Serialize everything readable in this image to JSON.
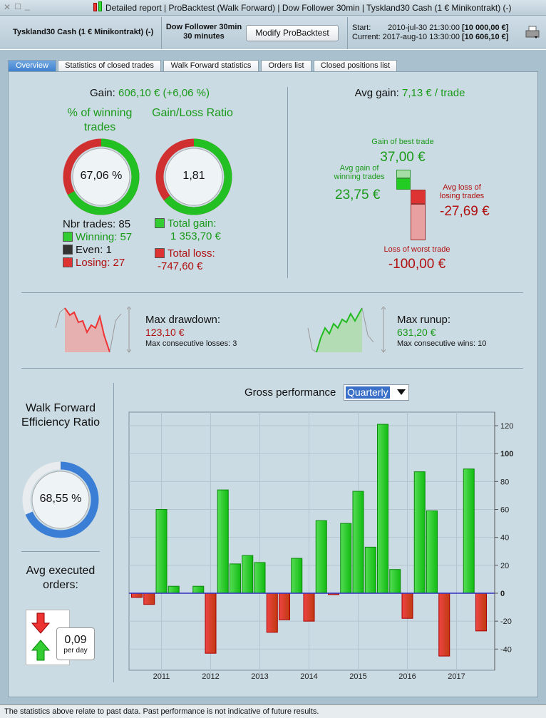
{
  "window": {
    "title": "Detailed report | ProBacktest (Walk Forward) | Dow Follower 30min | Tyskland30 Cash (1 € Minikontrakt) (-)"
  },
  "header": {
    "instrument": "Tyskland30 Cash (1 € Minikontrakt) (-)",
    "strategy": "Dow Follower 30min",
    "timeframe": "30 minutes",
    "modify_label": "Modify ProBacktest",
    "start_label": "Start:",
    "start_date": "2010-jul-30 21:30:00",
    "start_value": "[10 000,00 €]",
    "current_label": "Current:",
    "current_date": "2017-aug-10 13:30:00",
    "current_value": "[10 606,10 €]"
  },
  "tabs": [
    {
      "label": "Overview",
      "active": true
    },
    {
      "label": "Statistics of closed trades"
    },
    {
      "label": "Walk Forward statistics"
    },
    {
      "label": "Orders list"
    },
    {
      "label": "Closed positions list"
    }
  ],
  "gain": {
    "label": "Gain:",
    "value": "606,10 € (+6,06 %)",
    "win_title": "% of winning trades",
    "win_pct": "67,06 %",
    "win_fraction": 0.6706,
    "ratio_title": "Gain/Loss Ratio",
    "ratio": "1,81",
    "nbr_trades": "Nbr trades: 85",
    "winning": "Winning: 57",
    "even": "Even: 1",
    "losing": "Losing: 27",
    "total_gain_label": "Total gain:",
    "total_gain": "1 353,70 €",
    "total_loss_label": "Total loss:",
    "total_loss": "-747,60 €"
  },
  "avg": {
    "label": "Avg gain:",
    "value": "7,13 € / trade",
    "best_label": "Gain of best trade",
    "best": "37,00 €",
    "avg_win_label": "Avg gain of winning trades",
    "avg_win": "23,75 €",
    "avg_loss_label": "Avg loss of losing trades",
    "avg_loss": "-27,69 €",
    "worst_label": "Loss of worst trade",
    "worst": "-100,00 €"
  },
  "drawdown": {
    "label": "Max drawdown:",
    "value": "123,10 €",
    "sub": "Max consecutive losses: 3"
  },
  "runup": {
    "label": "Max runup:",
    "value": "631,20 €",
    "sub": "Max consecutive wins: 10"
  },
  "wfe": {
    "title": "Walk Forward Efficiency Ratio",
    "value": "68,55 %",
    "fraction": 0.6855
  },
  "orders": {
    "title": "Avg executed orders:",
    "value": "0,09",
    "unit": "per day"
  },
  "footer": "The statistics above relate to past data. Past performance is not indicative of future results.",
  "colors": {
    "green": "#22cc22",
    "red": "#dd3333",
    "blue": "#3a7fd5"
  },
  "chart_data": {
    "type": "bar",
    "title": "Gross performance",
    "period_select": "Quarterly",
    "categories": [
      "2010Q3",
      "2010Q4",
      "2011Q1",
      "2011Q2",
      "2011Q3",
      "2011Q4",
      "2012Q1",
      "2012Q2",
      "2012Q3",
      "2012Q4",
      "2013Q1",
      "2013Q2",
      "2013Q3",
      "2013Q4",
      "2014Q1",
      "2014Q2",
      "2014Q3",
      "2014Q4",
      "2015Q1",
      "2015Q2",
      "2015Q3",
      "2015Q4",
      "2016Q1",
      "2016Q2",
      "2016Q3",
      "2016Q4",
      "2017Q1",
      "2017Q2",
      "2017Q3"
    ],
    "values": [
      -3,
      -8,
      60,
      5,
      0,
      5,
      -43,
      74,
      21,
      27,
      22,
      -28,
      -19,
      25,
      -20,
      52,
      -1,
      50,
      73,
      33,
      121,
      17,
      -18,
      87,
      59,
      -45,
      0,
      89,
      -27
    ],
    "x_ticks": [
      "2011",
      "2012",
      "2013",
      "2014",
      "2015",
      "2016",
      "2017"
    ],
    "y_ticks": [
      "120",
      "100",
      "80",
      "60",
      "40",
      "20",
      "0",
      "-20",
      "-40"
    ],
    "ylim": [
      -52,
      131
    ]
  }
}
